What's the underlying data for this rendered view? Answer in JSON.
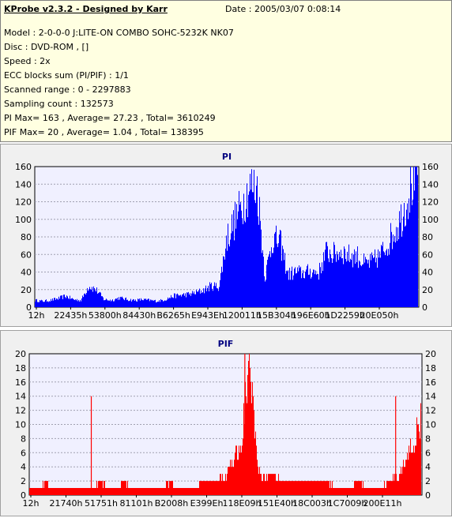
{
  "info": {
    "title": "KProbe v2.3.2 - Designed by Karr",
    "date": "Date : 2005/03/07 0:08:14",
    "model": "Model : 2-0-0-0 J:LITE-ON COMBO SOHC-5232K NK07",
    "disc": "Disc : DVD-ROM ,  []",
    "speed": "Speed : 2x",
    "ecc": "ECC blocks sum (PI/PIF) : 1/1",
    "range": "Scanned range : 0 - 2297883",
    "sampling": "Sampling count : 132573",
    "pi_stats": "PI Max= 163 , Average= 27.23 , Total= 3610249",
    "pif_stats": "PIF Max= 20 , Average= 1.04 , Total= 138395"
  },
  "colors": {
    "pi": "#0000ff",
    "pif": "#ff0000",
    "plot_bg": "#f0f0ff",
    "title": "#000080"
  },
  "chart_data": [
    {
      "type": "area",
      "title": "PI",
      "ylim": [
        0,
        160
      ],
      "yticks": [
        0,
        20,
        40,
        60,
        80,
        100,
        120,
        140,
        160
      ],
      "xticks": [
        "12h",
        "22435h",
        "53800h",
        "84430h",
        "B6265h",
        "E943Eh",
        "120011h",
        "15B304h",
        "196E60h",
        "1D2259h",
        "20E050h"
      ],
      "grid": true,
      "x": [
        0,
        2,
        4,
        6,
        8,
        10,
        12,
        14,
        16,
        18,
        20,
        22,
        24,
        26,
        28,
        30,
        32,
        34,
        36,
        38,
        40,
        42,
        44,
        46,
        48,
        50,
        52,
        54,
        56,
        58,
        60,
        62,
        64,
        66,
        68,
        70,
        72,
        74,
        76,
        78,
        80,
        82,
        84,
        86,
        88,
        90,
        92,
        94,
        96,
        98,
        100
      ],
      "values": [
        8,
        7,
        8,
        10,
        13,
        9,
        8,
        25,
        20,
        9,
        8,
        11,
        9,
        8,
        9,
        8,
        7,
        9,
        13,
        14,
        15,
        17,
        20,
        25,
        24,
        80,
        100,
        120,
        140,
        140,
        35,
        80,
        75,
        38,
        41,
        40,
        42,
        40,
        65,
        62,
        65,
        60,
        60,
        50,
        53,
        60,
        75,
        90,
        110,
        140,
        160
      ]
    },
    {
      "type": "area",
      "title": "PIF",
      "ylim": [
        0,
        20
      ],
      "yticks": [
        0,
        2,
        4,
        6,
        8,
        10,
        12,
        14,
        16,
        18,
        20
      ],
      "xticks": [
        "12h",
        "21740h",
        "51751h",
        "81101h",
        "B2008h",
        "E399Eh",
        "118E09h",
        "151E40h",
        "18C003h",
        "1C7009h",
        "200E11h"
      ],
      "grid": true,
      "x": [
        0,
        2,
        4,
        6,
        8,
        10,
        12,
        14,
        16,
        18,
        20,
        22,
        24,
        26,
        28,
        30,
        32,
        34,
        36,
        38,
        40,
        42,
        44,
        46,
        48,
        50,
        52,
        54,
        56,
        58,
        60,
        62,
        64,
        66,
        68,
        70,
        72,
        74,
        76,
        78,
        80,
        82,
        84,
        86,
        88,
        90,
        92,
        94,
        96,
        98,
        100
      ],
      "values": [
        1,
        1,
        2,
        1,
        1,
        1,
        1,
        1,
        1,
        2,
        1,
        1,
        2,
        1,
        1,
        1,
        1,
        1,
        2,
        1,
        1,
        1,
        2,
        2,
        2,
        3,
        5,
        7,
        20,
        5,
        2,
        3,
        2,
        2,
        2,
        2,
        2,
        2,
        2,
        1,
        1,
        1,
        2,
        1,
        1,
        1,
        2,
        3,
        5,
        8,
        11
      ],
      "spikes": [
        {
          "x": 15.8,
          "value": 14
        },
        {
          "x": 54.9,
          "value": 20
        },
        {
          "x": 93.3,
          "value": 14
        }
      ]
    }
  ]
}
